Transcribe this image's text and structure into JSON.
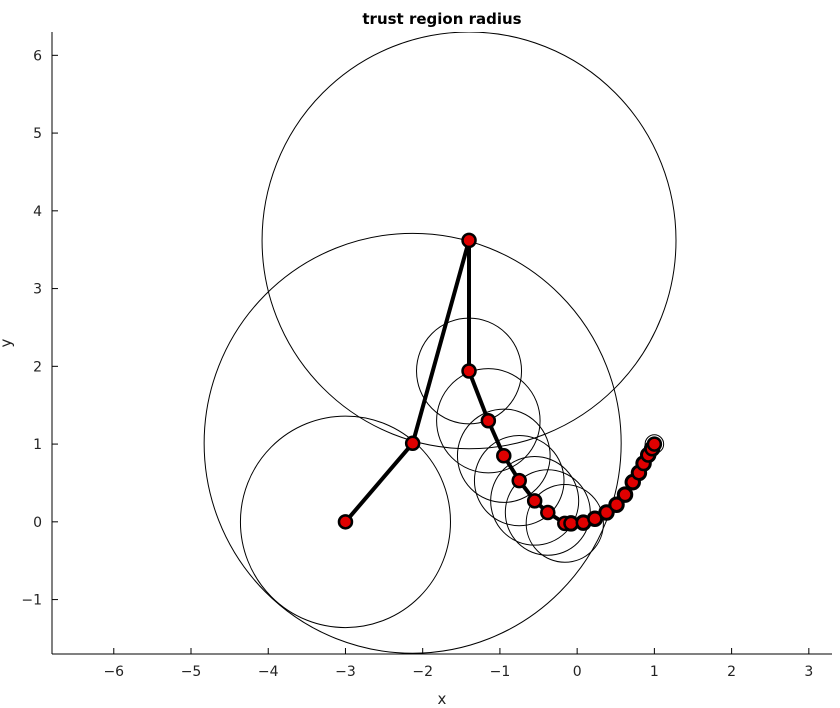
{
  "chart_data": {
    "type": "scatter",
    "title": "trust region radius",
    "xlabel": "x",
    "ylabel": "y",
    "xlim": [
      -6.8,
      3.3
    ],
    "ylim": [
      -1.7,
      6.3
    ],
    "xticks": [
      -6,
      -5,
      -4,
      -3,
      -2,
      -1,
      0,
      1,
      2,
      3
    ],
    "yticks": [
      -1,
      0,
      1,
      2,
      3,
      4,
      5,
      6
    ],
    "xtick_labels": [
      "−6",
      "−5",
      "−4",
      "−3",
      "−2",
      "−1",
      "0",
      "1",
      "2",
      "3"
    ],
    "ytick_labels": [
      "−1",
      "0",
      "1",
      "2",
      "3",
      "4",
      "5",
      "6"
    ],
    "grid": false,
    "path_color": "#000000",
    "marker_color": "#e00000",
    "circle_color": "#000000",
    "points": [
      {
        "x": -3.0,
        "y": 0.0,
        "r": 1.36
      },
      {
        "x": -2.13,
        "y": 1.01,
        "r": 2.7
      },
      {
        "x": -1.4,
        "y": 3.62,
        "r": 2.68
      },
      {
        "x": -1.4,
        "y": 1.94,
        "r": 0.68
      },
      {
        "x": -1.15,
        "y": 1.3,
        "r": 0.67
      },
      {
        "x": -0.95,
        "y": 0.85,
        "r": 0.6
      },
      {
        "x": -0.75,
        "y": 0.53,
        "r": 0.58
      },
      {
        "x": -0.55,
        "y": 0.27,
        "r": 0.57
      },
      {
        "x": -0.38,
        "y": 0.12,
        "r": 0.55
      },
      {
        "x": -0.16,
        "y": -0.02,
        "r": 0.5
      },
      {
        "x": -0.08,
        "y": -0.02,
        "r": 0.1
      },
      {
        "x": 0.08,
        "y": -0.01,
        "r": 0.1
      },
      {
        "x": 0.23,
        "y": 0.04,
        "r": 0.1
      },
      {
        "x": 0.38,
        "y": 0.12,
        "r": 0.1
      },
      {
        "x": 0.51,
        "y": 0.22,
        "r": 0.1
      },
      {
        "x": 0.62,
        "y": 0.35,
        "r": 0.1
      },
      {
        "x": 0.72,
        "y": 0.51,
        "r": 0.1
      },
      {
        "x": 0.8,
        "y": 0.63,
        "r": 0.1
      },
      {
        "x": 0.86,
        "y": 0.75,
        "r": 0.1
      },
      {
        "x": 0.92,
        "y": 0.86,
        "r": 0.1
      },
      {
        "x": 0.97,
        "y": 0.94,
        "r": 0.1
      },
      {
        "x": 1.0,
        "y": 1.0,
        "r": 0.12
      }
    ]
  }
}
